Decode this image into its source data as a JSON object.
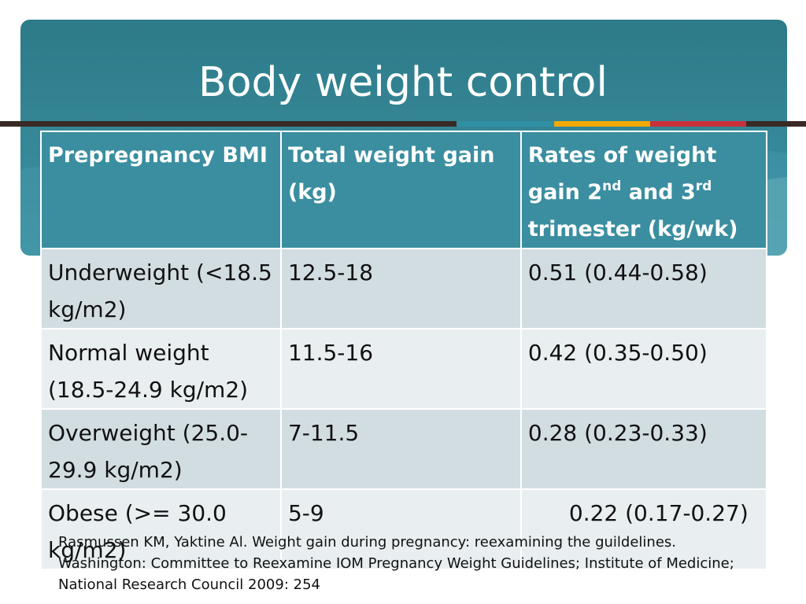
{
  "slide": {
    "title": "Body weight control",
    "colors": {
      "title_panel": "#37899a",
      "header_row": "#3a8ea0",
      "row_odd": "#d2dde2",
      "row_even": "#e9eef0",
      "accent_orange": "#f2a900",
      "accent_red": "#c8303a",
      "accent_dark": "#3a2a25"
    }
  },
  "table": {
    "headers": {
      "col1": "Prepregnancy BMI",
      "col2": "Total weight gain (kg)",
      "col3_part1": "Rates of weight gain 2",
      "col3_sup1": "nd",
      "col3_part2": " and 3",
      "col3_sup2": "rd",
      "col3_part3": " trimester (kg/wk)"
    },
    "rows": [
      {
        "bmi": "Underweight (<18.5 kg/m2)",
        "gain": "12.5-18",
        "rate": "0.51 (0.44-0.58)"
      },
      {
        "bmi": "Normal weight (18.5-24.9 kg/m2)",
        "gain": "11.5-16",
        "rate": "0.42 (0.35-0.50)"
      },
      {
        "bmi": "Overweight (25.0-29.9 kg/m2)",
        "gain": "7-11.5",
        "rate": "0.28 (0.23-0.33)"
      },
      {
        "bmi": "Obese (>= 30.0 kg/m2)",
        "gain": "5-9",
        "rate": "0.22 (0.17-0.27)"
      }
    ]
  },
  "citation": "Rasmussen KM, Yaktine Al. Weight gain during pregnancy: reexamining the guildelines. Washington: Committee to Reexamine IOM Pregnancy Weight Guidelines; Institute of Medicine; National Research Council 2009: 254"
}
